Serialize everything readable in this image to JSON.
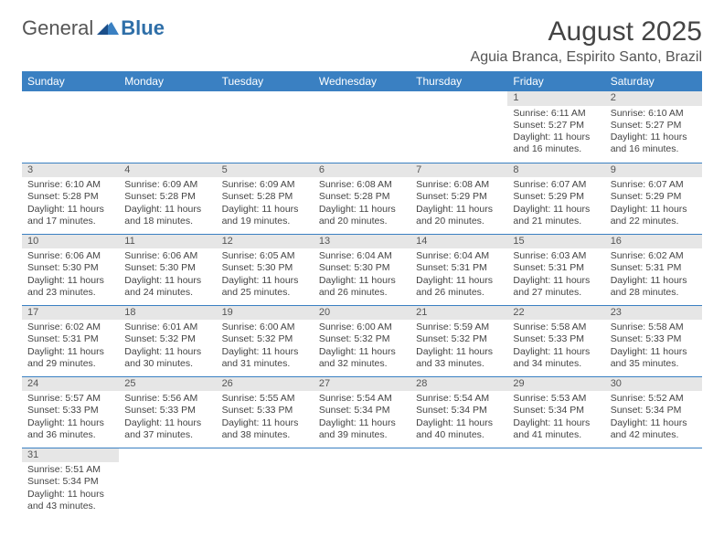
{
  "logo": {
    "text1": "General",
    "text2": "Blue"
  },
  "title": "August 2025",
  "location": "Aguia Branca, Espirito Santo, Brazil",
  "colors": {
    "header_bg": "#3a80c2",
    "header_fg": "#ffffff",
    "daynum_bg": "#e6e6e6",
    "border": "#3a80c2",
    "text": "#444444"
  },
  "weekdays": [
    "Sunday",
    "Monday",
    "Tuesday",
    "Wednesday",
    "Thursday",
    "Friday",
    "Saturday"
  ],
  "weeks": [
    [
      null,
      null,
      null,
      null,
      null,
      {
        "n": "1",
        "sr": "6:11 AM",
        "ss": "5:27 PM",
        "dl": "11 hours and 16 minutes."
      },
      {
        "n": "2",
        "sr": "6:10 AM",
        "ss": "5:27 PM",
        "dl": "11 hours and 16 minutes."
      }
    ],
    [
      {
        "n": "3",
        "sr": "6:10 AM",
        "ss": "5:28 PM",
        "dl": "11 hours and 17 minutes."
      },
      {
        "n": "4",
        "sr": "6:09 AM",
        "ss": "5:28 PM",
        "dl": "11 hours and 18 minutes."
      },
      {
        "n": "5",
        "sr": "6:09 AM",
        "ss": "5:28 PM",
        "dl": "11 hours and 19 minutes."
      },
      {
        "n": "6",
        "sr": "6:08 AM",
        "ss": "5:28 PM",
        "dl": "11 hours and 20 minutes."
      },
      {
        "n": "7",
        "sr": "6:08 AM",
        "ss": "5:29 PM",
        "dl": "11 hours and 20 minutes."
      },
      {
        "n": "8",
        "sr": "6:07 AM",
        "ss": "5:29 PM",
        "dl": "11 hours and 21 minutes."
      },
      {
        "n": "9",
        "sr": "6:07 AM",
        "ss": "5:29 PM",
        "dl": "11 hours and 22 minutes."
      }
    ],
    [
      {
        "n": "10",
        "sr": "6:06 AM",
        "ss": "5:30 PM",
        "dl": "11 hours and 23 minutes."
      },
      {
        "n": "11",
        "sr": "6:06 AM",
        "ss": "5:30 PM",
        "dl": "11 hours and 24 minutes."
      },
      {
        "n": "12",
        "sr": "6:05 AM",
        "ss": "5:30 PM",
        "dl": "11 hours and 25 minutes."
      },
      {
        "n": "13",
        "sr": "6:04 AM",
        "ss": "5:30 PM",
        "dl": "11 hours and 26 minutes."
      },
      {
        "n": "14",
        "sr": "6:04 AM",
        "ss": "5:31 PM",
        "dl": "11 hours and 26 minutes."
      },
      {
        "n": "15",
        "sr": "6:03 AM",
        "ss": "5:31 PM",
        "dl": "11 hours and 27 minutes."
      },
      {
        "n": "16",
        "sr": "6:02 AM",
        "ss": "5:31 PM",
        "dl": "11 hours and 28 minutes."
      }
    ],
    [
      {
        "n": "17",
        "sr": "6:02 AM",
        "ss": "5:31 PM",
        "dl": "11 hours and 29 minutes."
      },
      {
        "n": "18",
        "sr": "6:01 AM",
        "ss": "5:32 PM",
        "dl": "11 hours and 30 minutes."
      },
      {
        "n": "19",
        "sr": "6:00 AM",
        "ss": "5:32 PM",
        "dl": "11 hours and 31 minutes."
      },
      {
        "n": "20",
        "sr": "6:00 AM",
        "ss": "5:32 PM",
        "dl": "11 hours and 32 minutes."
      },
      {
        "n": "21",
        "sr": "5:59 AM",
        "ss": "5:32 PM",
        "dl": "11 hours and 33 minutes."
      },
      {
        "n": "22",
        "sr": "5:58 AM",
        "ss": "5:33 PM",
        "dl": "11 hours and 34 minutes."
      },
      {
        "n": "23",
        "sr": "5:58 AM",
        "ss": "5:33 PM",
        "dl": "11 hours and 35 minutes."
      }
    ],
    [
      {
        "n": "24",
        "sr": "5:57 AM",
        "ss": "5:33 PM",
        "dl": "11 hours and 36 minutes."
      },
      {
        "n": "25",
        "sr": "5:56 AM",
        "ss": "5:33 PM",
        "dl": "11 hours and 37 minutes."
      },
      {
        "n": "26",
        "sr": "5:55 AM",
        "ss": "5:33 PM",
        "dl": "11 hours and 38 minutes."
      },
      {
        "n": "27",
        "sr": "5:54 AM",
        "ss": "5:34 PM",
        "dl": "11 hours and 39 minutes."
      },
      {
        "n": "28",
        "sr": "5:54 AM",
        "ss": "5:34 PM",
        "dl": "11 hours and 40 minutes."
      },
      {
        "n": "29",
        "sr": "5:53 AM",
        "ss": "5:34 PM",
        "dl": "11 hours and 41 minutes."
      },
      {
        "n": "30",
        "sr": "5:52 AM",
        "ss": "5:34 PM",
        "dl": "11 hours and 42 minutes."
      }
    ],
    [
      {
        "n": "31",
        "sr": "5:51 AM",
        "ss": "5:34 PM",
        "dl": "11 hours and 43 minutes."
      },
      null,
      null,
      null,
      null,
      null,
      null
    ]
  ],
  "labels": {
    "sunrise": "Sunrise:",
    "sunset": "Sunset:",
    "daylight": "Daylight:"
  }
}
